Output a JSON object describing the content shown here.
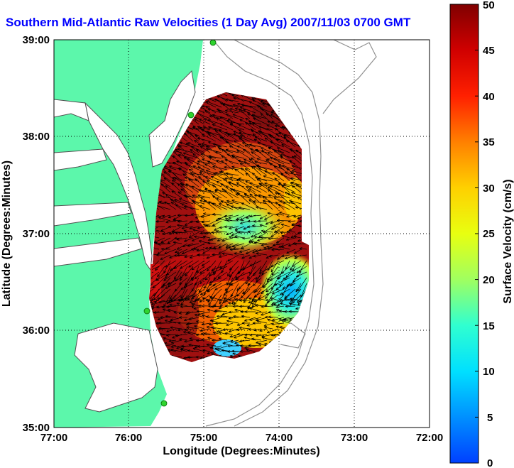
{
  "title": "Southern Mid-Atlantic Raw Velocities (1 Day Avg) 2007/11/03 0700 GMT",
  "map": {
    "xlabel": "Longitude (Degrees:Minutes)",
    "ylabel": "Latitude (Degrees:Minutes)",
    "x_ticks": [
      "77:00",
      "76:00",
      "75:00",
      "74:00",
      "73:00",
      "72:00"
    ],
    "y_ticks": [
      "39:00",
      "38:00",
      "37:00",
      "36:00",
      "35:00"
    ],
    "lon_range": [
      -77,
      -72
    ],
    "lat_range": [
      35,
      39
    ],
    "grid": true
  },
  "colorbar": {
    "label": "Surface Velocity (cm/s)",
    "ticks": [
      "50",
      "45",
      "40",
      "35",
      "30",
      "25",
      "20",
      "15",
      "10",
      "5",
      "0"
    ],
    "range": [
      0,
      50
    ]
  },
  "colors": {
    "land": "#5cf7ab",
    "title": "#0000ff",
    "station": "#2fd42f"
  }
}
